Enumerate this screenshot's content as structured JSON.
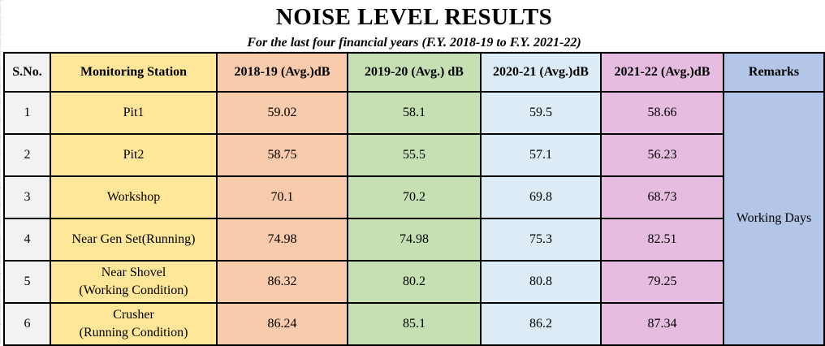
{
  "title": "NOISE LEVEL RESULTS",
  "subtitle": "For the last four financial years (F.Y. 2018-19 to F.Y. 2021-22)",
  "headers": {
    "sno": "S.No.",
    "station": "Monitoring Station",
    "y1": "2018-19 (Avg.)dB",
    "y2": "2019-20 (Avg.) dB",
    "y3": "2020-21 (Avg.)dB",
    "y4": "2021-22 (Avg.)dB",
    "remarks": "Remarks"
  },
  "remarks_value": "Working Days",
  "rows": [
    {
      "sno": "1",
      "station_line1": "Pit1",
      "station_line2": "",
      "y1": "59.02",
      "y2": "58.1",
      "y3": "59.5",
      "y4": "58.66"
    },
    {
      "sno": "2",
      "station_line1": "Pit2",
      "station_line2": "",
      "y1": "58.75",
      "y2": "55.5",
      "y3": "57.1",
      "y4": "56.23"
    },
    {
      "sno": "3",
      "station_line1": "Workshop",
      "station_line2": "",
      "y1": "70.1",
      "y2": "70.2",
      "y3": "69.8",
      "y4": "68.73"
    },
    {
      "sno": "4",
      "station_line1": "Near Gen Set(Running)",
      "station_line2": "",
      "y1": "74.98",
      "y2": "74.98",
      "y3": "75.3",
      "y4": "82.51"
    },
    {
      "sno": "5",
      "station_line1": "Near Shovel",
      "station_line2": "(Working Condition)",
      "y1": "86.32",
      "y2": "80.2",
      "y3": "80.8",
      "y4": "79.25"
    },
    {
      "sno": "6",
      "station_line1": "Crusher",
      "station_line2": "(Running Condition)",
      "y1": "86.24",
      "y2": "85.1",
      "y3": "86.2",
      "y4": "87.34"
    }
  ],
  "colors": {
    "sno_fill": "#f2f2f2",
    "station_fill": "#ffe699",
    "y1_fill": "#f8cbad",
    "y2_fill": "#c6e0b4",
    "y3_fill": "#ddebf7",
    "y4_fill": "#e6bde0",
    "remarks_fill": "#b4c6e7"
  }
}
